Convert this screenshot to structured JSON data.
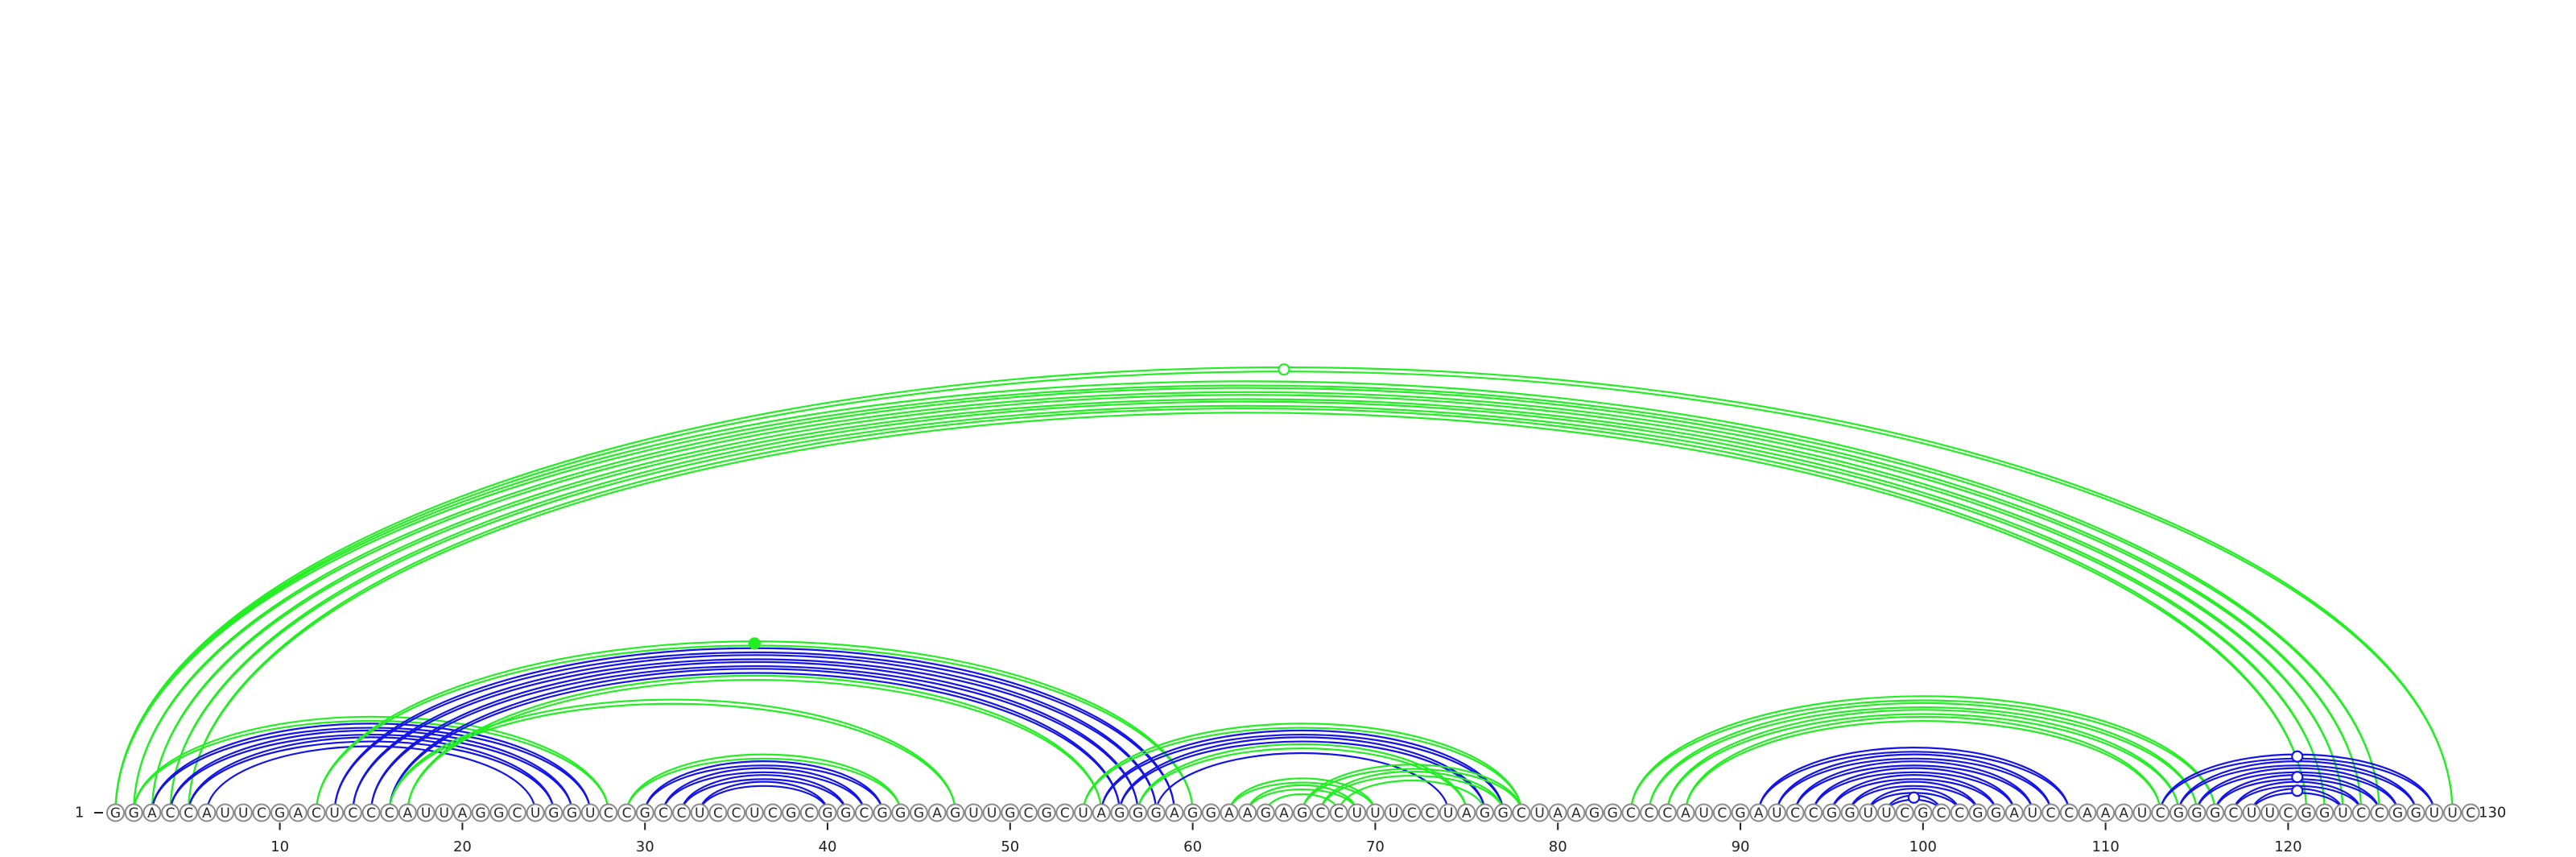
{
  "sequence": "GGACCAUUCGACUCCCAUUAGGCUGGUCCGCCUCCUCGCGGCGGGAGUUGCGCUAGGGAGGAAGAGCCUUUCCUAGGCUAAGGCCCAUCGAUCCGGUUCGCCGGAUCCAAAUCGGGCUUCGGUCCGGUUC",
  "start_label": "1",
  "end_label": "130",
  "ticks": [
    10,
    20,
    30,
    40,
    50,
    60,
    70,
    80,
    90,
    100,
    110,
    120
  ],
  "colors": {
    "green": "#22ee22",
    "blue": "#1414e6"
  },
  "chart_data": {
    "type": "arc-diagram",
    "length": 130,
    "arcs": [
      {
        "i": 1,
        "j": 129,
        "color": "green",
        "double": true
      },
      {
        "i": 1,
        "j": 125,
        "color": "green",
        "double": true
      },
      {
        "i": 2,
        "j": 124,
        "color": "green",
        "double": true
      },
      {
        "i": 3,
        "j": 123,
        "color": "green",
        "double": true
      },
      {
        "i": 4,
        "j": 122,
        "color": "green",
        "double": true
      },
      {
        "i": 5,
        "j": 121,
        "color": "green",
        "double": true
      },
      {
        "i": 2,
        "j": 28,
        "color": "green",
        "double": true
      },
      {
        "i": 3,
        "j": 27,
        "color": "blue",
        "double": true
      },
      {
        "i": 4,
        "j": 26,
        "color": "blue",
        "double": true
      },
      {
        "i": 5,
        "j": 25,
        "color": "blue",
        "double": true
      },
      {
        "i": 6,
        "j": 24,
        "color": "blue",
        "double": false
      },
      {
        "i": 12,
        "j": 60,
        "color": "green",
        "double": true
      },
      {
        "i": 13,
        "j": 59,
        "color": "blue",
        "double": true
      },
      {
        "i": 14,
        "j": 58,
        "color": "blue",
        "double": true
      },
      {
        "i": 15,
        "j": 57,
        "color": "blue",
        "double": true
      },
      {
        "i": 16,
        "j": 56,
        "color": "blue",
        "double": true
      },
      {
        "i": 17,
        "j": 55,
        "color": "green",
        "double": true
      },
      {
        "i": 16,
        "j": 47,
        "color": "green",
        "double": true
      },
      {
        "i": 29,
        "j": 44,
        "color": "green",
        "double": true
      },
      {
        "i": 30,
        "j": 43,
        "color": "blue",
        "double": true
      },
      {
        "i": 31,
        "j": 42,
        "color": "blue",
        "double": true
      },
      {
        "i": 32,
        "j": 41,
        "color": "blue",
        "double": true
      },
      {
        "i": 33,
        "j": 40,
        "color": "blue",
        "double": true
      },
      {
        "i": 54,
        "j": 78,
        "color": "green",
        "double": true
      },
      {
        "i": 55,
        "j": 77,
        "color": "blue",
        "double": true
      },
      {
        "i": 56,
        "j": 76,
        "color": "blue",
        "double": true
      },
      {
        "i": 57,
        "j": 75,
        "color": "green",
        "double": true
      },
      {
        "i": 58,
        "j": 74,
        "color": "blue",
        "double": false
      },
      {
        "i": 62,
        "j": 70,
        "color": "green",
        "double": true
      },
      {
        "i": 63,
        "j": 69,
        "color": "green",
        "double": true
      },
      {
        "i": 64,
        "j": 68,
        "color": "green",
        "double": false
      },
      {
        "i": 66,
        "j": 78,
        "color": "green",
        "double": true
      },
      {
        "i": 67,
        "j": 77,
        "color": "green",
        "double": true
      },
      {
        "i": 68,
        "j": 76,
        "color": "green",
        "double": false
      },
      {
        "i": 84,
        "j": 116,
        "color": "green",
        "double": true
      },
      {
        "i": 85,
        "j": 115,
        "color": "green",
        "double": true
      },
      {
        "i": 86,
        "j": 114,
        "color": "green",
        "double": true
      },
      {
        "i": 87,
        "j": 113,
        "color": "green",
        "double": true
      },
      {
        "i": 91,
        "j": 108,
        "color": "blue",
        "double": true
      },
      {
        "i": 92,
        "j": 107,
        "color": "blue",
        "double": true
      },
      {
        "i": 93,
        "j": 106,
        "color": "blue",
        "double": true
      },
      {
        "i": 94,
        "j": 105,
        "color": "blue",
        "double": true
      },
      {
        "i": 95,
        "j": 104,
        "color": "blue",
        "double": true
      },
      {
        "i": 96,
        "j": 103,
        "color": "blue",
        "double": true
      },
      {
        "i": 97,
        "j": 102,
        "color": "blue",
        "double": true
      },
      {
        "i": 98,
        "j": 101,
        "color": "blue",
        "double": true
      },
      {
        "i": 113,
        "j": 128,
        "color": "blue",
        "double": true
      },
      {
        "i": 114,
        "j": 127,
        "color": "blue",
        "double": true
      },
      {
        "i": 115,
        "j": 126,
        "color": "blue",
        "double": true
      },
      {
        "i": 116,
        "j": 125,
        "color": "blue",
        "double": true
      },
      {
        "i": 117,
        "j": 124,
        "color": "blue",
        "double": true
      },
      {
        "i": 118,
        "j": 123,
        "color": "blue",
        "double": true
      }
    ],
    "markers": [
      {
        "i": 1,
        "j": 129,
        "color": "green",
        "filled": false
      },
      {
        "i": 12,
        "j": 60,
        "color": "green",
        "filled": true
      },
      {
        "i": 98,
        "j": 101,
        "color": "blue",
        "filled": false
      },
      {
        "i": 113,
        "j": 128,
        "color": "blue",
        "filled": false
      },
      {
        "i": 116,
        "j": 125,
        "color": "blue",
        "filled": false
      },
      {
        "i": 118,
        "j": 123,
        "color": "blue",
        "filled": false
      }
    ]
  }
}
